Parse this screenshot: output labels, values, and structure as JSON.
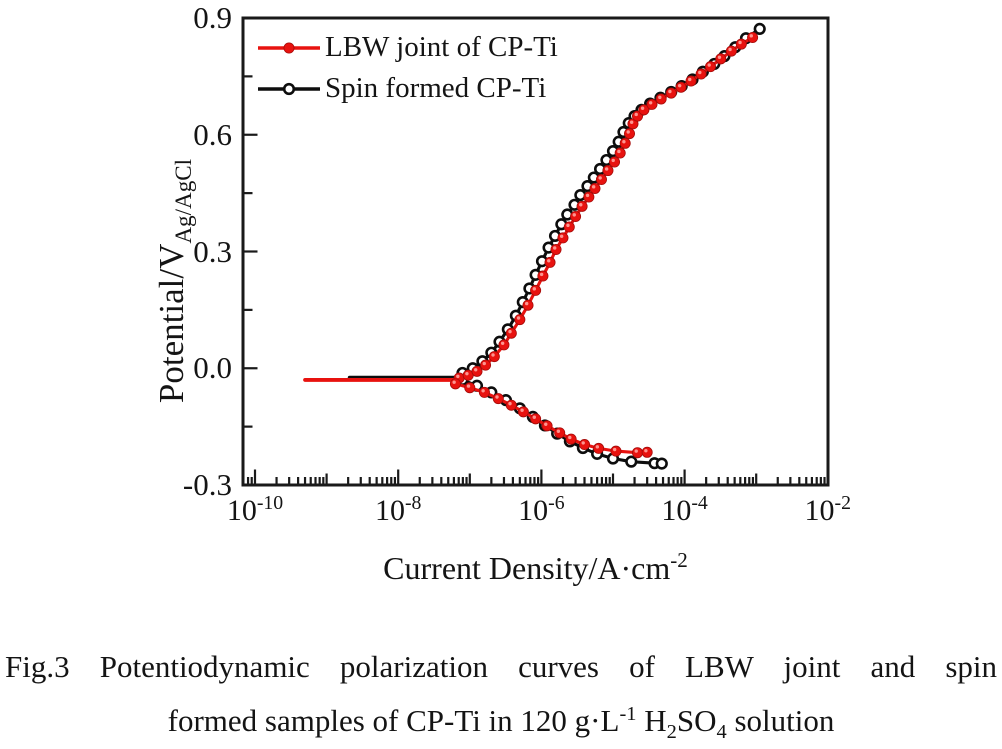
{
  "figure_label": "Fig.3",
  "caption": {
    "line1": "Fig.3 Potentiodynamic polarization curves of LBW joint and spin",
    "line2_segments": [
      {
        "t": "formed samples of CP-Ti in 120 g·L"
      },
      {
        "t": "-1",
        "style": "sup"
      },
      {
        "t": " H"
      },
      {
        "t": "2",
        "style": "sub"
      },
      {
        "t": "SO"
      },
      {
        "t": "4",
        "style": "sub"
      },
      {
        "t": " solution"
      }
    ]
  },
  "legend": {
    "position": "top-left-inside",
    "items": [
      {
        "label": "LBW joint of CP-Ti",
        "color": "#e8120f",
        "marker": "filled-circle"
      },
      {
        "label": "Spin formed CP-Ti",
        "color": "#0d0d0d",
        "marker": "open-circle"
      }
    ]
  },
  "chart_data": {
    "type": "line",
    "title": "",
    "x_axis": {
      "label": "Current Density/A·cm^-2",
      "title_segments": [
        {
          "t": "Current Density/A·cm"
        },
        {
          "t": "-2",
          "style": "sup"
        }
      ],
      "scale": "log",
      "min": 6e-11,
      "max": 0.01,
      "labeled_tick_exponents": [
        -10,
        -8,
        -6,
        -4,
        -2
      ],
      "tick_labels": [
        {
          "base": "10",
          "exp": "-10"
        },
        {
          "base": "10",
          "exp": "-8"
        },
        {
          "base": "10",
          "exp": "-6"
        },
        {
          "base": "10",
          "exp": "-4"
        },
        {
          "base": "10",
          "exp": "-2"
        }
      ]
    },
    "y_axis": {
      "label": "Potential/V_Ag/AgCl",
      "title_segments": [
        {
          "t": "Potential/V"
        },
        {
          "t": "Ag/AgCl",
          "style": "sub"
        }
      ],
      "scale": "linear",
      "min": -0.3,
      "max": 0.9,
      "major_step": 0.3,
      "minor_step": 0.15,
      "tick_labels": [
        "0.9",
        "0.6",
        "0.3",
        "0.0",
        "-0.3"
      ],
      "tick_values": [
        0.9,
        0.6,
        0.3,
        0.0,
        -0.3
      ],
      "minor_tick_values": [
        0.75,
        0.45,
        0.15,
        -0.15
      ]
    },
    "grid": false,
    "series": [
      {
        "name": "LBW joint of CP-Ti",
        "color": "#e8120f",
        "marker": "filled-circle",
        "corrosion_potential": -0.03,
        "flat_line": {
          "potential": -0.03,
          "from": 5e-10,
          "to": 6.3e-08
        },
        "anodic": [
          [
            7.1e-08,
            -0.025
          ],
          [
            9.5e-08,
            -0.018
          ],
          [
            1.26e-07,
            -0.008
          ],
          [
            1.66e-07,
            0.008
          ],
          [
            2.2e-07,
            0.03
          ],
          [
            3e-07,
            0.06
          ],
          [
            3.8e-07,
            0.09
          ],
          [
            5e-07,
            0.125
          ],
          [
            6.5e-07,
            0.162
          ],
          [
            8.3e-07,
            0.2
          ],
          [
            1.05e-06,
            0.237
          ],
          [
            1.32e-06,
            0.272
          ],
          [
            1.6e-06,
            0.305
          ],
          [
            2e-06,
            0.335
          ],
          [
            2.45e-06,
            0.363
          ],
          [
            3e-06,
            0.39
          ],
          [
            3.7e-06,
            0.416
          ],
          [
            4.6e-06,
            0.44
          ],
          [
            5.6e-06,
            0.462
          ],
          [
            6.9e-06,
            0.485
          ],
          [
            8.5e-06,
            0.508
          ],
          [
            1.05e-05,
            0.53
          ],
          [
            1.26e-05,
            0.553
          ],
          [
            1.48e-05,
            0.578
          ],
          [
            1.7e-05,
            0.603
          ],
          [
            1.9e-05,
            0.628
          ],
          [
            2.2e-05,
            0.648
          ],
          [
            2.7e-05,
            0.664
          ],
          [
            3.5e-05,
            0.678
          ],
          [
            4.7e-05,
            0.692
          ],
          [
            6.5e-05,
            0.707
          ],
          [
            8.9e-05,
            0.722
          ],
          [
            0.000123,
            0.738
          ],
          [
            0.00017,
            0.756
          ],
          [
            0.00023,
            0.775
          ],
          [
            0.00032,
            0.795
          ],
          [
            0.00045,
            0.815
          ],
          [
            0.00062,
            0.833
          ],
          [
            0.00089,
            0.85
          ]
        ],
        "cathodic": [
          [
            6.3e-08,
            -0.04
          ],
          [
            1e-07,
            -0.05
          ],
          [
            1.6e-07,
            -0.062
          ],
          [
            2.5e-07,
            -0.078
          ],
          [
            3.8e-07,
            -0.095
          ],
          [
            5.6e-07,
            -0.112
          ],
          [
            8.3e-07,
            -0.13
          ],
          [
            1.2e-06,
            -0.148
          ],
          [
            1.8e-06,
            -0.166
          ],
          [
            2.6e-06,
            -0.182
          ],
          [
            4e-06,
            -0.196
          ],
          [
            6.3e-06,
            -0.206
          ],
          [
            1.1e-05,
            -0.213
          ],
          [
            2.2e-05,
            -0.217
          ],
          [
            3e-05,
            -0.216
          ]
        ]
      },
      {
        "name": "Spin formed CP-Ti",
        "color": "#0d0d0d",
        "marker": "open-circle",
        "corrosion_potential": -0.024,
        "flat_line": {
          "potential": -0.024,
          "from": 2.1e-09,
          "to": 7.9e-08
        },
        "anodic": [
          [
            7.9e-08,
            -0.012
          ],
          [
            1.1e-07,
            0.0
          ],
          [
            1.5e-07,
            0.018
          ],
          [
            2e-07,
            0.04
          ],
          [
            2.6e-07,
            0.068
          ],
          [
            3.4e-07,
            0.1
          ],
          [
            4.4e-07,
            0.135
          ],
          [
            5.5e-07,
            0.17
          ],
          [
            6.8e-07,
            0.205
          ],
          [
            8.3e-07,
            0.24
          ],
          [
            1.02e-06,
            0.275
          ],
          [
            1.26e-06,
            0.31
          ],
          [
            1.55e-06,
            0.34
          ],
          [
            1.9e-06,
            0.37
          ],
          [
            2.3e-06,
            0.395
          ],
          [
            2.9e-06,
            0.42
          ],
          [
            3.5e-06,
            0.445
          ],
          [
            4.4e-06,
            0.468
          ],
          [
            5.4e-06,
            0.49
          ],
          [
            6.6e-06,
            0.512
          ],
          [
            8.1e-06,
            0.535
          ],
          [
            1e-05,
            0.558
          ],
          [
            1.2e-05,
            0.582
          ],
          [
            1.4e-05,
            0.607
          ],
          [
            1.66e-05,
            0.63
          ],
          [
            2e-05,
            0.648
          ],
          [
            2.5e-05,
            0.664
          ],
          [
            3.3e-05,
            0.68
          ],
          [
            4.6e-05,
            0.695
          ],
          [
            6.5e-05,
            0.71
          ],
          [
            9.1e-05,
            0.725
          ],
          [
            0.000129,
            0.742
          ],
          [
            0.00018,
            0.762
          ],
          [
            0.00026,
            0.782
          ],
          [
            0.00036,
            0.802
          ],
          [
            0.00051,
            0.825
          ],
          [
            0.00072,
            0.848
          ],
          [
            0.00112,
            0.872
          ]
        ],
        "cathodic": [
          [
            7.9e-08,
            -0.03
          ],
          [
            1.26e-07,
            -0.045
          ],
          [
            2e-07,
            -0.062
          ],
          [
            3.2e-07,
            -0.082
          ],
          [
            5e-07,
            -0.103
          ],
          [
            7.6e-07,
            -0.125
          ],
          [
            1.12e-06,
            -0.147
          ],
          [
            1.66e-06,
            -0.168
          ],
          [
            2.5e-06,
            -0.188
          ],
          [
            3.8e-06,
            -0.205
          ],
          [
            6e-06,
            -0.22
          ],
          [
            1e-05,
            -0.232
          ],
          [
            1.8e-05,
            -0.24
          ],
          [
            3.8e-05,
            -0.244
          ],
          [
            4.8e-05,
            -0.245
          ]
        ]
      }
    ]
  },
  "colors": {
    "red_series": "#e8120f",
    "black_series": "#0d0d0d",
    "axis": "#1a1a1a",
    "background": "#ffffff"
  }
}
